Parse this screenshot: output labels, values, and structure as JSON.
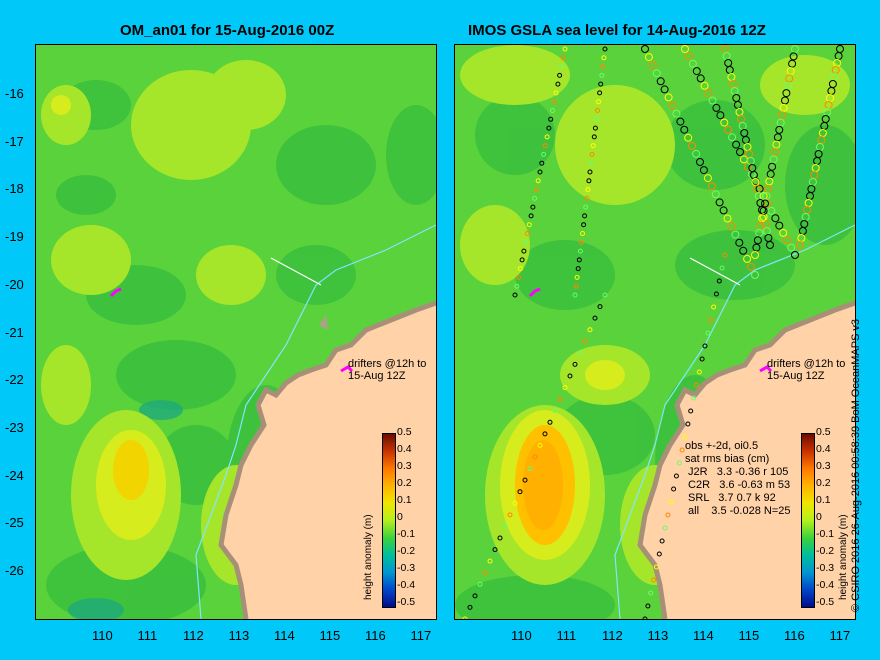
{
  "left_panel": {
    "title": "OM_an01 for 15-Aug-2016 00Z",
    "drifter_label": "drifters @12h to\n15-Aug 12Z"
  },
  "right_panel": {
    "title": "IMOS GSLA sea level  for 14-Aug-2016 12Z",
    "drifter_label": "drifters @12h to\n15-Aug 12Z",
    "stats_text": "obs +-2d, oi0.5\nsat rms bias (cm)\n J2R   3.3 -0.36 r 105\n C2R   3.6 -0.63 m 53\n SRL   3.7 0.7 k 92\n all    3.5 -0.028 N=25"
  },
  "colorbar": {
    "label": "height anomaly (m)",
    "ticks": [
      "0.5",
      "0.4",
      "0.3",
      "0.2",
      "0.1",
      "0",
      "-0.1",
      "-0.2",
      "-0.3",
      "-0.4",
      "-0.5"
    ],
    "colors": [
      "#6a0d00",
      "#c83200",
      "#ff7800",
      "#ffb400",
      "#f0e600",
      "#b4f01e",
      "#3cd23c",
      "#00be9b",
      "#0096d2",
      "#0046c8",
      "#000a8c"
    ]
  },
  "axes": {
    "x_ticks": [
      "110",
      "111",
      "112",
      "113",
      "114",
      "115",
      "116",
      "117"
    ],
    "y_ticks": [
      "-16",
      "-17",
      "-18",
      "-19",
      "-20",
      "-21",
      "-22",
      "-23",
      "-24",
      "-25",
      "-26"
    ]
  },
  "credit": "© CSIRO 2016   26-Aug-2016 00:58:39 BoM OceanMAPS v3",
  "colors": {
    "background": "#00c8f8",
    "land": "#ffd2a8",
    "coast": "#b0a08a",
    "drifter": "#ff00ff"
  }
}
